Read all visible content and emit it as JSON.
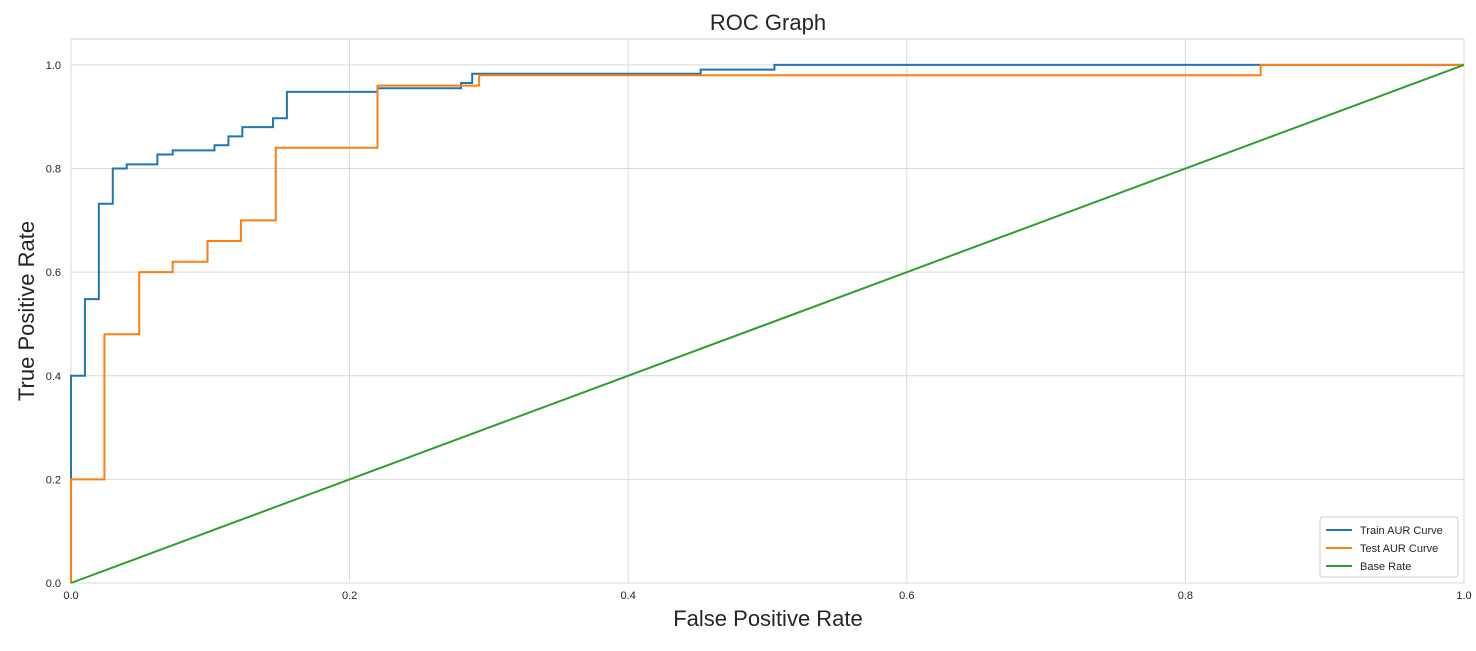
{
  "chart_data": {
    "type": "line",
    "title": "ROC Graph",
    "xlabel": "False Positive Rate",
    "ylabel": "True Positive Rate",
    "xlim": [
      0,
      1
    ],
    "ylim": [
      0,
      1.05
    ],
    "xticks": [
      0.0,
      0.2,
      0.4,
      0.6,
      0.8,
      1.0
    ],
    "yticks": [
      0.0,
      0.2,
      0.4,
      0.6,
      0.8,
      1.0
    ],
    "xtick_labels": [
      "0.0",
      "0.2",
      "0.4",
      "0.6",
      "0.8",
      "1.0"
    ],
    "ytick_labels": [
      "0.0",
      "0.2",
      "0.4",
      "0.6",
      "0.8",
      "1.0"
    ],
    "grid": true,
    "legend_position": "bottom-right",
    "series": [
      {
        "name": "Train AUR Curve",
        "color": "#1f77b4",
        "step": true,
        "x": [
          0.0,
          0.0,
          0.01,
          0.01,
          0.02,
          0.02,
          0.03,
          0.03,
          0.04,
          0.04,
          0.062,
          0.062,
          0.073,
          0.073,
          0.103,
          0.103,
          0.113,
          0.113,
          0.123,
          0.123,
          0.145,
          0.145,
          0.155,
          0.155,
          0.22,
          0.22,
          0.28,
          0.28,
          0.288,
          0.288,
          0.452,
          0.452,
          0.505,
          0.505,
          0.85,
          1.0
        ],
        "y": [
          0.0,
          0.4,
          0.4,
          0.548,
          0.548,
          0.732,
          0.732,
          0.8,
          0.8,
          0.808,
          0.808,
          0.827,
          0.827,
          0.835,
          0.835,
          0.845,
          0.845,
          0.862,
          0.862,
          0.88,
          0.88,
          0.897,
          0.897,
          0.948,
          0.948,
          0.955,
          0.955,
          0.965,
          0.965,
          0.983,
          0.983,
          0.991,
          0.991,
          1.0,
          1.0,
          1.0
        ]
      },
      {
        "name": "Test AUR Curve",
        "color": "#ff7f0e",
        "step": true,
        "x": [
          0.0,
          0.0,
          0.024,
          0.024,
          0.049,
          0.049,
          0.073,
          0.073,
          0.098,
          0.098,
          0.122,
          0.122,
          0.147,
          0.147,
          0.22,
          0.22,
          0.293,
          0.293,
          0.854,
          0.854,
          1.0
        ],
        "y": [
          0.0,
          0.2,
          0.2,
          0.48,
          0.48,
          0.6,
          0.6,
          0.62,
          0.62,
          0.66,
          0.66,
          0.7,
          0.7,
          0.84,
          0.84,
          0.96,
          0.96,
          0.98,
          0.98,
          1.0,
          1.0
        ]
      },
      {
        "name": "Base Rate",
        "color": "#2ca02c",
        "step": false,
        "x": [
          0.0,
          1.0
        ],
        "y": [
          0.0,
          1.0
        ]
      }
    ]
  }
}
